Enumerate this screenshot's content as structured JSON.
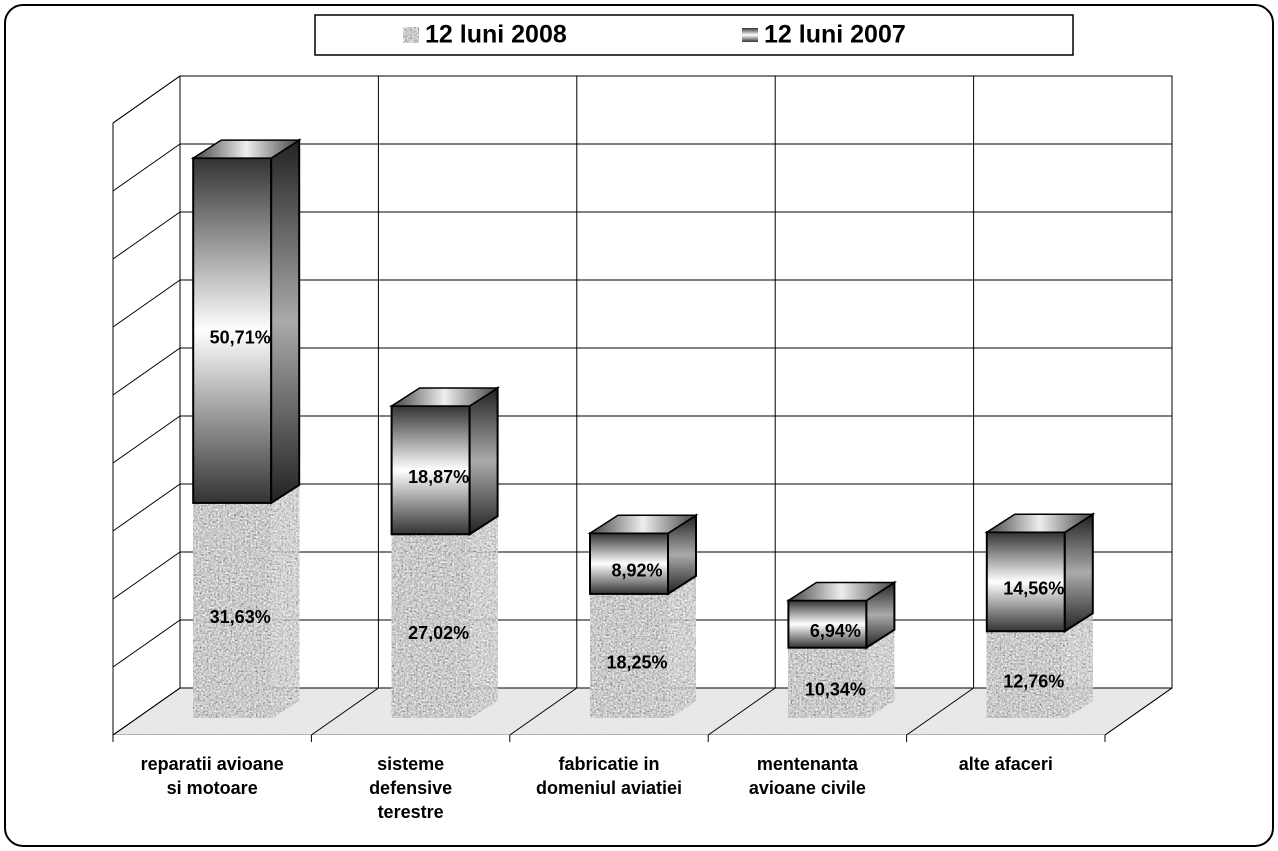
{
  "chart_data": {
    "type": "bar3d-stacked",
    "categories": [
      "reparatii avioane\nsi motoare",
      "sisteme\ndefensive\nterestre",
      "fabricatie in\ndomeniul aviatiei",
      "mentenanta\navioane civile",
      "alte afaceri"
    ],
    "series": [
      {
        "name": "12 luni 2008",
        "color": "#9a9a9a",
        "values": [
          31.63,
          27.02,
          18.25,
          10.34,
          12.76
        ],
        "value_labels": [
          "31,63%",
          "27,02%",
          "18,25%",
          "10,34%",
          "12,76%"
        ]
      },
      {
        "name": "12 luni 2007",
        "color": "#ffffff",
        "values": [
          50.71,
          18.87,
          8.92,
          6.94,
          14.56
        ],
        "value_labels": [
          "50,71%",
          "18,87%",
          "8,92%",
          "6,94%",
          "14,56%"
        ]
      }
    ],
    "ylim": [
      0,
      90
    ],
    "yticks": [
      0,
      10,
      20,
      30,
      40,
      50,
      60,
      70,
      80,
      90
    ],
    "grid": true,
    "legend": "top"
  }
}
